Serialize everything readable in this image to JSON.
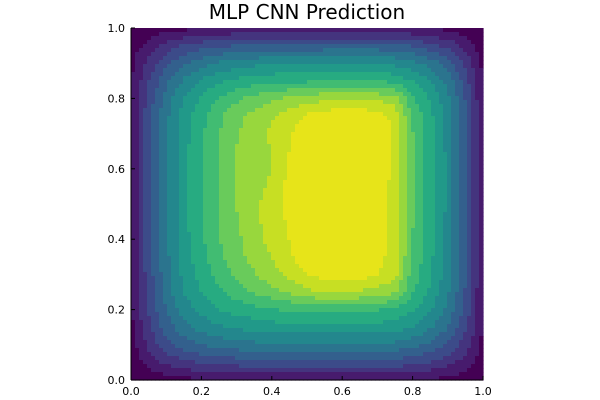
{
  "chart_data": {
    "type": "heatmap",
    "title": "MLP CNN Prediction",
    "xlabel": "",
    "ylabel": "",
    "xlim": [
      0,
      1
    ],
    "ylim": [
      0,
      1
    ],
    "xticks": [
      "0.0",
      "0.2",
      "0.4",
      "0.6",
      "0.8",
      "1.0"
    ],
    "yticks": [
      "0.0",
      "0.2",
      "0.4",
      "0.6",
      "0.8",
      "1.0"
    ],
    "grid": false,
    "legend": "none",
    "colormap": "viridis",
    "levels": 14,
    "x": [
      0.0,
      0.05,
      0.1,
      0.15,
      0.2,
      0.25,
      0.3,
      0.35,
      0.4,
      0.45,
      0.5,
      0.55,
      0.6,
      0.65,
      0.7,
      0.75,
      0.8,
      0.85,
      0.9,
      0.95,
      1.0
    ],
    "y": [
      0.0,
      0.05,
      0.1,
      0.15,
      0.2,
      0.25,
      0.3,
      0.35,
      0.4,
      0.45,
      0.5,
      0.55,
      0.6,
      0.65,
      0.7,
      0.75,
      0.8,
      0.85,
      0.9,
      0.95,
      1.0
    ],
    "z": [
      [
        0.0,
        0.02,
        0.04,
        0.05,
        0.06,
        0.07,
        0.07,
        0.08,
        0.08,
        0.08,
        0.08,
        0.08,
        0.08,
        0.08,
        0.08,
        0.08,
        0.07,
        0.06,
        0.05,
        0.03,
        0.0
      ],
      [
        0.02,
        0.1,
        0.16,
        0.2,
        0.22,
        0.24,
        0.25,
        0.26,
        0.26,
        0.26,
        0.26,
        0.26,
        0.26,
        0.26,
        0.26,
        0.26,
        0.24,
        0.21,
        0.17,
        0.11,
        0.03
      ],
      [
        0.04,
        0.16,
        0.26,
        0.32,
        0.36,
        0.38,
        0.4,
        0.41,
        0.42,
        0.42,
        0.42,
        0.42,
        0.42,
        0.42,
        0.42,
        0.41,
        0.38,
        0.34,
        0.28,
        0.18,
        0.05
      ],
      [
        0.05,
        0.2,
        0.32,
        0.4,
        0.46,
        0.49,
        0.51,
        0.53,
        0.54,
        0.55,
        0.55,
        0.55,
        0.55,
        0.55,
        0.55,
        0.53,
        0.5,
        0.44,
        0.36,
        0.23,
        0.06
      ],
      [
        0.06,
        0.22,
        0.36,
        0.46,
        0.52,
        0.57,
        0.6,
        0.62,
        0.64,
        0.65,
        0.66,
        0.66,
        0.66,
        0.66,
        0.65,
        0.62,
        0.58,
        0.51,
        0.41,
        0.26,
        0.07
      ],
      [
        0.07,
        0.24,
        0.39,
        0.5,
        0.57,
        0.63,
        0.68,
        0.72,
        0.76,
        0.8,
        0.84,
        0.86,
        0.86,
        0.85,
        0.83,
        0.8,
        0.65,
        0.56,
        0.44,
        0.28,
        0.07
      ],
      [
        0.07,
        0.25,
        0.4,
        0.52,
        0.6,
        0.67,
        0.73,
        0.78,
        0.83,
        0.88,
        0.93,
        0.96,
        0.97,
        0.96,
        0.93,
        0.88,
        0.68,
        0.58,
        0.46,
        0.29,
        0.08
      ],
      [
        0.08,
        0.26,
        0.41,
        0.53,
        0.62,
        0.7,
        0.76,
        0.81,
        0.86,
        0.92,
        0.97,
        0.99,
        0.99,
        0.98,
        0.95,
        0.9,
        0.7,
        0.59,
        0.47,
        0.3,
        0.08
      ],
      [
        0.08,
        0.26,
        0.42,
        0.54,
        0.63,
        0.71,
        0.77,
        0.83,
        0.88,
        0.93,
        0.98,
        0.99,
        0.99,
        0.98,
        0.96,
        0.91,
        0.71,
        0.6,
        0.47,
        0.3,
        0.08
      ],
      [
        0.08,
        0.26,
        0.42,
        0.55,
        0.64,
        0.72,
        0.78,
        0.84,
        0.89,
        0.94,
        0.98,
        0.99,
        0.99,
        0.99,
        0.96,
        0.91,
        0.72,
        0.6,
        0.48,
        0.3,
        0.08
      ],
      [
        0.08,
        0.26,
        0.42,
        0.55,
        0.64,
        0.72,
        0.79,
        0.84,
        0.9,
        0.95,
        0.99,
        0.99,
        0.99,
        0.99,
        0.96,
        0.91,
        0.72,
        0.61,
        0.48,
        0.3,
        0.08
      ],
      [
        0.08,
        0.26,
        0.42,
        0.55,
        0.64,
        0.72,
        0.79,
        0.81,
        0.88,
        0.95,
        0.99,
        0.99,
        0.99,
        0.99,
        0.96,
        0.91,
        0.72,
        0.61,
        0.48,
        0.3,
        0.08
      ],
      [
        0.08,
        0.26,
        0.42,
        0.55,
        0.64,
        0.72,
        0.79,
        0.8,
        0.86,
        0.94,
        0.98,
        0.99,
        0.99,
        0.99,
        0.97,
        0.91,
        0.72,
        0.61,
        0.48,
        0.3,
        0.08
      ],
      [
        0.08,
        0.26,
        0.42,
        0.55,
        0.64,
        0.72,
        0.79,
        0.82,
        0.86,
        0.93,
        0.98,
        0.99,
        0.99,
        0.99,
        0.97,
        0.92,
        0.72,
        0.61,
        0.48,
        0.3,
        0.08
      ],
      [
        0.08,
        0.26,
        0.42,
        0.54,
        0.63,
        0.71,
        0.78,
        0.83,
        0.87,
        0.92,
        0.97,
        0.99,
        0.99,
        0.99,
        0.97,
        0.92,
        0.72,
        0.6,
        0.47,
        0.3,
        0.08
      ],
      [
        0.08,
        0.26,
        0.41,
        0.53,
        0.62,
        0.7,
        0.76,
        0.81,
        0.85,
        0.89,
        0.94,
        0.97,
        0.98,
        0.98,
        0.96,
        0.91,
        0.7,
        0.59,
        0.47,
        0.3,
        0.08
      ],
      [
        0.07,
        0.24,
        0.39,
        0.5,
        0.58,
        0.65,
        0.7,
        0.74,
        0.77,
        0.8,
        0.82,
        0.84,
        0.85,
        0.85,
        0.84,
        0.81,
        0.66,
        0.56,
        0.45,
        0.28,
        0.07
      ],
      [
        0.06,
        0.21,
        0.34,
        0.44,
        0.51,
        0.56,
        0.59,
        0.61,
        0.62,
        0.63,
        0.63,
        0.64,
        0.64,
        0.64,
        0.64,
        0.62,
        0.57,
        0.5,
        0.4,
        0.25,
        0.06
      ],
      [
        0.05,
        0.17,
        0.27,
        0.35,
        0.4,
        0.44,
        0.46,
        0.48,
        0.49,
        0.49,
        0.49,
        0.5,
        0.5,
        0.5,
        0.5,
        0.48,
        0.45,
        0.4,
        0.32,
        0.2,
        0.05
      ],
      [
        0.03,
        0.1,
        0.17,
        0.22,
        0.25,
        0.27,
        0.29,
        0.3,
        0.3,
        0.31,
        0.31,
        0.31,
        0.31,
        0.31,
        0.31,
        0.3,
        0.28,
        0.24,
        0.19,
        0.12,
        0.03
      ],
      [
        0.0,
        0.02,
        0.04,
        0.05,
        0.06,
        0.07,
        0.07,
        0.08,
        0.08,
        0.08,
        0.08,
        0.08,
        0.08,
        0.08,
        0.08,
        0.08,
        0.07,
        0.06,
        0.05,
        0.03,
        0.0
      ]
    ]
  }
}
